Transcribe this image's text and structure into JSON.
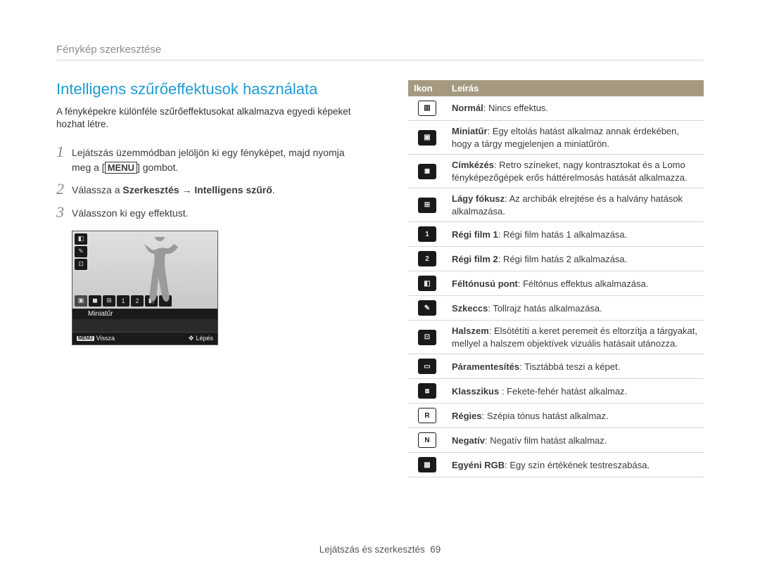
{
  "breadcrumb": "Fénykép szerkesztése",
  "section_title": "Intelligens szűrőeffektusok használata",
  "intro": "A fényképekre különféle szűrőeffektusokat alkalmazva egyedi képeket hozhat létre.",
  "steps": [
    {
      "num": "1",
      "pre": "Lejátszás üzemmódban jelöljön ki egy fényképet, majd nyomja meg a [",
      "key": "MENU",
      "post": "] gombot."
    },
    {
      "num": "2",
      "pre": "Válassza a ",
      "bold": "Szerkesztés → Intelligens szűrő",
      "post": "."
    },
    {
      "num": "3",
      "pre": "Válasszon ki egy effektust."
    }
  ],
  "screenshot": {
    "selected_label": "Miniatűr",
    "bottom_left_key": "MENU",
    "bottom_left": "Vissza",
    "bottom_right": "Lépés"
  },
  "table": {
    "col1": "Ikon",
    "col2": "Leírás",
    "rows": [
      {
        "icon_glyph": "▥",
        "icon_class": "inv",
        "term": "Normál",
        "desc": ": Nincs effektus."
      },
      {
        "icon_glyph": "▣",
        "term": "Miniatűr",
        "desc": ": Egy eltolás hatást alkalmaz annak érdekében, hogy a tárgy megjelenjen a miniatűrön."
      },
      {
        "icon_glyph": "◼",
        "term": "Címkézés",
        "desc": ": Retro színeket, nagy kontrasztokat és a Lomo fényképezőgépek erős háttérelmosás hatását alkalmazza."
      },
      {
        "icon_glyph": "⊞",
        "term": "Lágy fókusz",
        "desc": ": Az archibák elrejtése és a halvány hatások alkalmazása."
      },
      {
        "icon_glyph": "1",
        "term": "Régi film 1",
        "desc": ": Régi film hatás 1 alkalmazása."
      },
      {
        "icon_glyph": "2",
        "term": "Régi film 2",
        "desc": ": Régi film hatás 2 alkalmazása."
      },
      {
        "icon_glyph": "◧",
        "term": "Féltónusú pont",
        "desc": ": Féltónus effektus alkalmazása."
      },
      {
        "icon_glyph": "✎",
        "term": "Szkeccs",
        "desc": ": Tollrajz hatás alkalmazása."
      },
      {
        "icon_glyph": "⊡",
        "term": "Halszem",
        "desc": ": Elsötétíti a keret peremeit és eltorzítja a tárgyakat, mellyel a halszem objektívek vizuális hatásait utánozza."
      },
      {
        "icon_glyph": "▭",
        "term": "Páramentesítés",
        "desc": ": Tisztábbá teszi a képet."
      },
      {
        "icon_glyph": "⧈",
        "term": "Klasszikus ",
        "desc": ": Fekete-fehér hatást alkalmaz."
      },
      {
        "icon_glyph": "R",
        "icon_class": "inv",
        "term": "Régies",
        "desc": ": Szépia tónus hatást alkalmaz."
      },
      {
        "icon_glyph": "N",
        "icon_class": "inv",
        "term": "Negatív",
        "desc": ": Negatív film hatást alkalmaz."
      },
      {
        "icon_glyph": "▦",
        "term": "Egyéni RGB",
        "desc": ": Egy szín értékének testreszabása."
      }
    ]
  },
  "footer_text": "Lejátszás és szerkesztés",
  "footer_page": "69"
}
